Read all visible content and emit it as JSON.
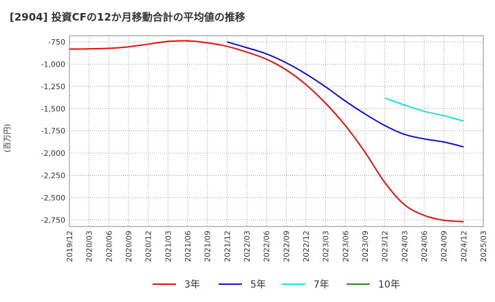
{
  "chart_data": {
    "type": "line",
    "title": "[2904]  投資CFの12か月移動合計の平均値の推移",
    "ylabel": "(百万円)",
    "ylim": [
      -2825,
      -680
    ],
    "y_ticks": [
      -750,
      -1000,
      -1250,
      -1500,
      -1750,
      -2000,
      -2250,
      -2500,
      -2750
    ],
    "y_tick_labels": [
      "-750",
      "-1,000",
      "-1,250",
      "-1,500",
      "-1,750",
      "-2,000",
      "-2,250",
      "-2,500",
      "-2,750"
    ],
    "x_tick_labels": [
      "2019/12",
      "2020/03",
      "2020/06",
      "2020/09",
      "2020/12",
      "2021/03",
      "2021/06",
      "2021/09",
      "2021/12",
      "2022/03",
      "2022/06",
      "2022/09",
      "2022/12",
      "2023/03",
      "2023/06",
      "2023/09",
      "2023/12",
      "2024/03",
      "2024/06",
      "2024/09",
      "2024/12",
      "2025/03"
    ],
    "grid": true,
    "legend_position": "bottom",
    "series": [
      {
        "name": "3年",
        "color": "#dd1111",
        "x": [
          "2019/12",
          "2020/03",
          "2020/06",
          "2020/09",
          "2020/12",
          "2021/03",
          "2021/06",
          "2021/09",
          "2021/12",
          "2022/03",
          "2022/06",
          "2022/09",
          "2022/12",
          "2023/03",
          "2023/06",
          "2023/09",
          "2023/12",
          "2024/03",
          "2024/06",
          "2024/09",
          "2024/12"
        ],
        "values": [
          -830,
          -828,
          -822,
          -805,
          -775,
          -745,
          -738,
          -760,
          -800,
          -865,
          -945,
          -1065,
          -1230,
          -1440,
          -1690,
          -1990,
          -2330,
          -2580,
          -2700,
          -2755,
          -2770
        ]
      },
      {
        "name": "5年",
        "color": "#1111cc",
        "x": [
          "2021/12",
          "2022/03",
          "2022/06",
          "2022/09",
          "2022/12",
          "2023/03",
          "2023/06",
          "2023/09",
          "2023/12",
          "2024/03",
          "2024/06",
          "2024/09",
          "2024/12"
        ],
        "values": [
          -750,
          -815,
          -885,
          -985,
          -1110,
          -1255,
          -1415,
          -1560,
          -1690,
          -1790,
          -1840,
          -1875,
          -1930
        ]
      },
      {
        "name": "7年",
        "color": "#22dddd",
        "x": [
          "2023/12",
          "2024/03",
          "2024/06",
          "2024/09",
          "2024/12"
        ],
        "values": [
          -1380,
          -1460,
          -1530,
          -1580,
          -1640
        ]
      },
      {
        "name": "10年",
        "color": "#228822",
        "x": [],
        "values": []
      }
    ]
  }
}
